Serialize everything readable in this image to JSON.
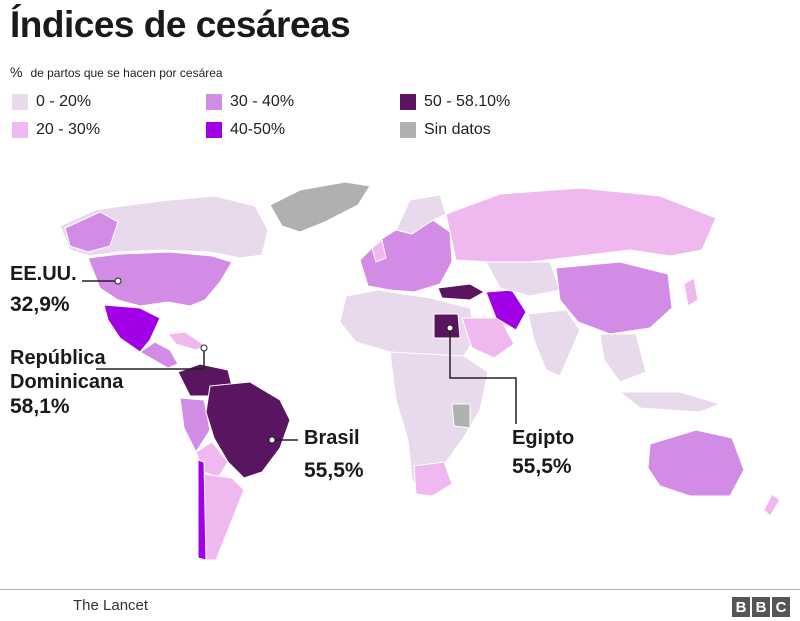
{
  "title": "Índices de cesáreas",
  "subtitle_symbol": "%",
  "subtitle": "de partos que se hacen por cesárea",
  "legend": [
    {
      "label": "0 - 20%",
      "color": "#e8d9ec"
    },
    {
      "label": "20 - 30%",
      "color": "#efb8ef"
    },
    {
      "label": "30 - 40%",
      "color": "#d38ce6"
    },
    {
      "label": "40-50%",
      "color": "#a100e6"
    },
    {
      "label": "50 - 58.10%",
      "color": "#5a1560"
    },
    {
      "label": "Sin datos",
      "color": "#b0b0b0"
    }
  ],
  "callouts": {
    "usa": {
      "name": "EE.UU.",
      "value": "32,9%"
    },
    "dr": {
      "name_line1": "República",
      "name_line2": "Dominicana",
      "value": "58,1%"
    },
    "brazil": {
      "name": "Brasil",
      "value": "55,5%"
    },
    "egypt": {
      "name": "Egipto",
      "value": "55,5%"
    }
  },
  "source": "The Lancet",
  "brand": [
    "B",
    "B",
    "C"
  ]
}
